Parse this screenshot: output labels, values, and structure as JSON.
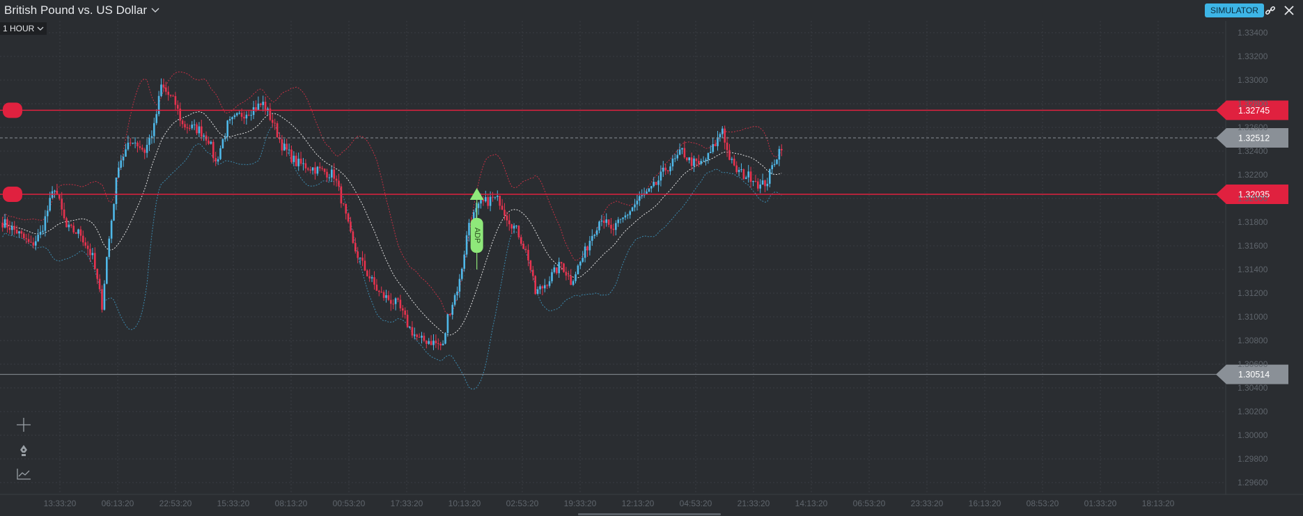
{
  "header": {
    "title": "British Pound vs. US Dollar",
    "timeframe": "1 HOUR",
    "simulator": "SIMULATOR"
  },
  "icons": {
    "title_dropdown": "chevron-down-icon",
    "timeframe_dropdown": "chevron-down-icon",
    "link": "link-icon",
    "close": "close-icon",
    "crosshair": "crosshair-icon",
    "pen": "pen-icon",
    "indicators": "line-chart-icon"
  },
  "colors": {
    "bull": "#4fb8e8",
    "bear": "#e6334f",
    "upper_band": "#c73044",
    "lower_band": "#3c8bb0",
    "middle_band": "#e6e6e6",
    "alert_line": "#e0213f",
    "price_line": "#8a9097",
    "event_marker": "#8fe87a"
  },
  "chart_data": {
    "type": "candlestick",
    "ylim": [
      1.295,
      1.335
    ],
    "y_ticks": [
      "1.33400",
      "1.33200",
      "1.33000",
      "1.32800",
      "1.32600",
      "1.32400",
      "1.32200",
      "1.32000",
      "1.31800",
      "1.31600",
      "1.31400",
      "1.31200",
      "1.31000",
      "1.30800",
      "1.30600",
      "1.30400",
      "1.30200",
      "1.30000",
      "1.29800",
      "1.29600"
    ],
    "x_ticks": [
      "13:33:20",
      "06:13:20",
      "22:53:20",
      "15:33:20",
      "08:13:20",
      "00:53:20",
      "17:33:20",
      "10:13:20",
      "02:53:20",
      "19:33:20",
      "12:13:20",
      "04:53:20",
      "21:33:20",
      "14:13:20",
      "06:53:20",
      "23:33:20",
      "16:13:20",
      "08:53:20",
      "01:33:20",
      "18:13:20"
    ],
    "horizontal_lines": [
      {
        "label": "1.32745",
        "value": 1.32745,
        "kind": "alert"
      },
      {
        "label": "1.32512",
        "value": 1.32512,
        "kind": "price"
      },
      {
        "label": "1.32035",
        "value": 1.32035,
        "kind": "alert"
      },
      {
        "label": "1.30514",
        "value": 1.30514,
        "kind": "price"
      }
    ],
    "event": {
      "label": "ADP",
      "candle_index": 200,
      "value": 1.32035
    },
    "price_path": [
      [
        0,
        1.318
      ],
      [
        6,
        1.3172
      ],
      [
        12,
        1.316
      ],
      [
        16,
        1.317
      ],
      [
        22,
        1.321
      ],
      [
        27,
        1.3175
      ],
      [
        33,
        1.317
      ],
      [
        38,
        1.315
      ],
      [
        42,
        1.311
      ],
      [
        44,
        1.315
      ],
      [
        49,
        1.323
      ],
      [
        55,
        1.325
      ],
      [
        60,
        1.324
      ],
      [
        64,
        1.326
      ],
      [
        67,
        1.3295
      ],
      [
        73,
        1.328
      ],
      [
        76,
        1.3262
      ],
      [
        83,
        1.3258
      ],
      [
        87,
        1.325
      ],
      [
        90,
        1.323
      ],
      [
        95,
        1.3262
      ],
      [
        100,
        1.327
      ],
      [
        105,
        1.3275
      ],
      [
        110,
        1.328
      ],
      [
        114,
        1.3265
      ],
      [
        118,
        1.3245
      ],
      [
        124,
        1.323
      ],
      [
        132,
        1.3225
      ],
      [
        140,
        1.322
      ],
      [
        143,
        1.32
      ],
      [
        148,
        1.316
      ],
      [
        153,
        1.314
      ],
      [
        159,
        1.312
      ],
      [
        163,
        1.3115
      ],
      [
        167,
        1.311
      ],
      [
        172,
        1.309
      ],
      [
        176,
        1.308
      ],
      [
        180,
        1.308
      ],
      [
        186,
        1.3075
      ],
      [
        188,
        1.31
      ],
      [
        193,
        1.313
      ],
      [
        197,
        1.318
      ],
      [
        202,
        1.3195
      ],
      [
        207,
        1.32
      ],
      [
        210,
        1.3198
      ],
      [
        213,
        1.3185
      ],
      [
        218,
        1.317
      ],
      [
        222,
        1.315
      ],
      [
        225,
        1.312
      ],
      [
        228,
        1.3125
      ],
      [
        232,
        1.3135
      ],
      [
        236,
        1.3145
      ],
      [
        240,
        1.313
      ],
      [
        245,
        1.315
      ],
      [
        249,
        1.317
      ],
      [
        253,
        1.3185
      ],
      [
        257,
        1.3172
      ],
      [
        261,
        1.318
      ],
      [
        265,
        1.319
      ],
      [
        269,
        1.32
      ],
      [
        273,
        1.3205
      ],
      [
        276,
        1.3212
      ],
      [
        280,
        1.3225
      ],
      [
        284,
        1.3232
      ],
      [
        287,
        1.324
      ],
      [
        290,
        1.3232
      ],
      [
        294,
        1.3228
      ],
      [
        298,
        1.3235
      ],
      [
        302,
        1.325
      ],
      [
        304,
        1.326
      ],
      [
        306,
        1.324
      ],
      [
        309,
        1.3225
      ],
      [
        313,
        1.322
      ],
      [
        317,
        1.3218
      ],
      [
        320,
        1.321
      ],
      [
        323,
        1.3215
      ],
      [
        326,
        1.3232
      ],
      [
        329,
        1.3245
      ]
    ],
    "n_candles": 330
  }
}
